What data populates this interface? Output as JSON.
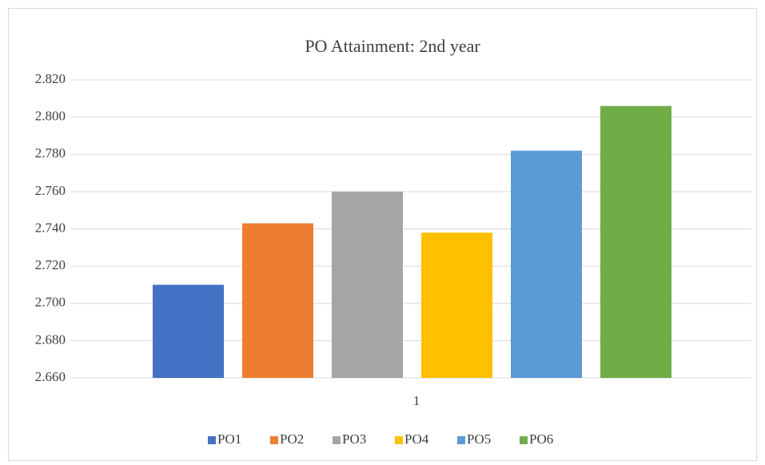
{
  "chart_data": {
    "type": "bar",
    "title": "PO Attainment: 2nd year",
    "categories": [
      "1"
    ],
    "series": [
      {
        "name": "PO1",
        "color": "#4472c4",
        "values": [
          2.71
        ]
      },
      {
        "name": "PO2",
        "color": "#ed7d31",
        "values": [
          2.743
        ]
      },
      {
        "name": "PO3",
        "color": "#a5a5a5",
        "values": [
          2.76
        ]
      },
      {
        "name": "PO4",
        "color": "#ffc000",
        "values": [
          2.738
        ]
      },
      {
        "name": "PO5",
        "color": "#5b9bd5",
        "values": [
          2.782
        ]
      },
      {
        "name": "PO6",
        "color": "#70ad47",
        "values": [
          2.806
        ]
      }
    ],
    "ylim": [
      2.66,
      2.82
    ],
    "yticks": [
      {
        "value": 2.66,
        "label": "2.660"
      },
      {
        "value": 2.68,
        "label": "2.680"
      },
      {
        "value": 2.7,
        "label": "2.700"
      },
      {
        "value": 2.72,
        "label": "2.720"
      },
      {
        "value": 2.74,
        "label": "2.740"
      },
      {
        "value": 2.76,
        "label": "2.760"
      },
      {
        "value": 2.78,
        "label": "2.780"
      },
      {
        "value": 2.8,
        "label": "2.800"
      },
      {
        "value": 2.82,
        "label": "2.820"
      }
    ],
    "grid": true,
    "legend": "bottom"
  }
}
